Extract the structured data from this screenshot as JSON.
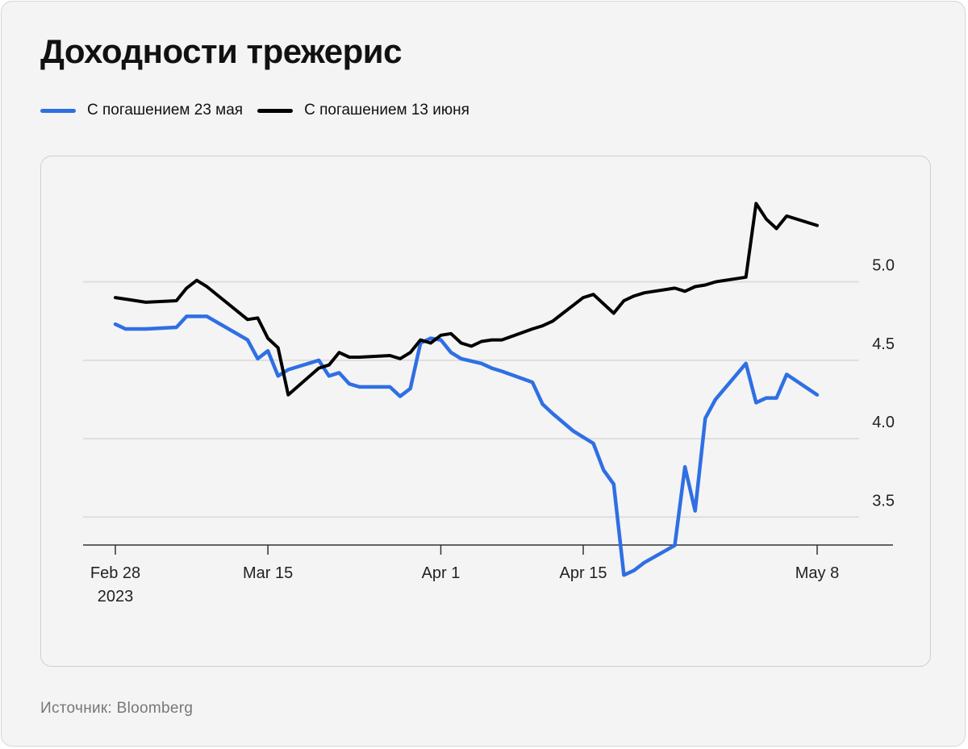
{
  "header": {
    "title": "Доходности трежерис"
  },
  "legend": {
    "items": [
      {
        "label": "С погашением 23 мая",
        "color": "#2f6fe4"
      },
      {
        "label": "С погашением 13 июня",
        "color": "#000000"
      }
    ]
  },
  "footer": {
    "source": "Источник: Bloomberg"
  },
  "chart_data": {
    "type": "line",
    "title": "Доходности трежерис",
    "xlabel": "",
    "ylabel": "",
    "xlim": [
      "2023-02-28",
      "2023-05-08"
    ],
    "ylim": [
      3.25,
      5.25
    ],
    "grid": true,
    "legend_position": "top-left",
    "y_ticks": [
      {
        "value": 5.0,
        "label": "5.0"
      },
      {
        "value": 4.5,
        "label": "4.5"
      },
      {
        "value": 4.0,
        "label": "4.0"
      },
      {
        "value": 3.5,
        "label": "3.5"
      }
    ],
    "x_ticks": [
      {
        "date": "2023-02-28",
        "label": "Feb 28",
        "label2": "2023"
      },
      {
        "date": "2023-03-15",
        "label": "Mar 15",
        "label2": ""
      },
      {
        "date": "2023-04-01",
        "label": "Apr 1",
        "label2": ""
      },
      {
        "date": "2023-04-15",
        "label": "Apr 15",
        "label2": ""
      },
      {
        "date": "2023-05-08",
        "label": "May 8",
        "label2": ""
      }
    ],
    "series": [
      {
        "name": "С погашением 23 мая",
        "color": "#2f6fe4",
        "points": [
          [
            "2023-02-28",
            4.73
          ],
          [
            "2023-03-01",
            4.7
          ],
          [
            "2023-03-02",
            4.7
          ],
          [
            "2023-03-03",
            4.7
          ],
          [
            "2023-03-06",
            4.71
          ],
          [
            "2023-03-07",
            4.78
          ],
          [
            "2023-03-08",
            4.78
          ],
          [
            "2023-03-09",
            4.78
          ],
          [
            "2023-03-13",
            4.63
          ],
          [
            "2023-03-14",
            4.51
          ],
          [
            "2023-03-15",
            4.56
          ],
          [
            "2023-03-16",
            4.4
          ],
          [
            "2023-03-17",
            4.44
          ],
          [
            "2023-03-20",
            4.5
          ],
          [
            "2023-03-21",
            4.4
          ],
          [
            "2023-03-22",
            4.42
          ],
          [
            "2023-03-23",
            4.35
          ],
          [
            "2023-03-24",
            4.33
          ],
          [
            "2023-03-27",
            4.33
          ],
          [
            "2023-03-28",
            4.27
          ],
          [
            "2023-03-29",
            4.32
          ],
          [
            "2023-03-30",
            4.61
          ],
          [
            "2023-03-31",
            4.64
          ],
          [
            "2023-04-01",
            4.63
          ],
          [
            "2023-04-02",
            4.55
          ],
          [
            "2023-04-03",
            4.51
          ],
          [
            "2023-04-05",
            4.48
          ],
          [
            "2023-04-06",
            4.45
          ],
          [
            "2023-04-07",
            4.43
          ],
          [
            "2023-04-10",
            4.36
          ],
          [
            "2023-04-11",
            4.22
          ],
          [
            "2023-04-12",
            4.16
          ],
          [
            "2023-04-14",
            4.05
          ],
          [
            "2023-04-16",
            3.97
          ],
          [
            "2023-04-17",
            3.8
          ],
          [
            "2023-04-18",
            3.71
          ],
          [
            "2023-04-19",
            3.13
          ],
          [
            "2023-04-20",
            3.16
          ],
          [
            "2023-04-21",
            3.21
          ],
          [
            "2023-04-24",
            3.32
          ],
          [
            "2023-04-25",
            3.82
          ],
          [
            "2023-04-26",
            3.54
          ],
          [
            "2023-04-27",
            4.13
          ],
          [
            "2023-04-28",
            4.25
          ],
          [
            "2023-05-01",
            4.48
          ],
          [
            "2023-05-02",
            4.23
          ],
          [
            "2023-05-03",
            4.26
          ],
          [
            "2023-05-04",
            4.26
          ],
          [
            "2023-05-05",
            4.41
          ],
          [
            "2023-05-08",
            4.28
          ]
        ]
      },
      {
        "name": "С погашением 13 июня",
        "color": "#000000",
        "points": [
          [
            "2023-02-28",
            4.9
          ],
          [
            "2023-03-01",
            4.89
          ],
          [
            "2023-03-03",
            4.87
          ],
          [
            "2023-03-06",
            4.88
          ],
          [
            "2023-03-07",
            4.96
          ],
          [
            "2023-03-08",
            5.01
          ],
          [
            "2023-03-09",
            4.97
          ],
          [
            "2023-03-13",
            4.76
          ],
          [
            "2023-03-14",
            4.77
          ],
          [
            "2023-03-15",
            4.64
          ],
          [
            "2023-03-16",
            4.58
          ],
          [
            "2023-03-17",
            4.28
          ],
          [
            "2023-03-20",
            4.45
          ],
          [
            "2023-03-21",
            4.47
          ],
          [
            "2023-03-22",
            4.55
          ],
          [
            "2023-03-23",
            4.52
          ],
          [
            "2023-03-24",
            4.52
          ],
          [
            "2023-03-27",
            4.53
          ],
          [
            "2023-03-28",
            4.51
          ],
          [
            "2023-03-29",
            4.55
          ],
          [
            "2023-03-30",
            4.63
          ],
          [
            "2023-03-31",
            4.61
          ],
          [
            "2023-04-01",
            4.66
          ],
          [
            "2023-04-02",
            4.67
          ],
          [
            "2023-04-03",
            4.61
          ],
          [
            "2023-04-04",
            4.59
          ],
          [
            "2023-04-05",
            4.62
          ],
          [
            "2023-04-06",
            4.63
          ],
          [
            "2023-04-07",
            4.63
          ],
          [
            "2023-04-10",
            4.7
          ],
          [
            "2023-04-11",
            4.72
          ],
          [
            "2023-04-12",
            4.75
          ],
          [
            "2023-04-13",
            4.8
          ],
          [
            "2023-04-14",
            4.85
          ],
          [
            "2023-04-15",
            4.9
          ],
          [
            "2023-04-16",
            4.92
          ],
          [
            "2023-04-18",
            4.8
          ],
          [
            "2023-04-19",
            4.88
          ],
          [
            "2023-04-20",
            4.91
          ],
          [
            "2023-04-21",
            4.93
          ],
          [
            "2023-04-24",
            4.96
          ],
          [
            "2023-04-25",
            4.94
          ],
          [
            "2023-04-26",
            4.97
          ],
          [
            "2023-04-27",
            4.98
          ],
          [
            "2023-04-28",
            5.0
          ],
          [
            "2023-05-01",
            5.03
          ],
          [
            "2023-05-02",
            5.5
          ],
          [
            "2023-05-03",
            5.4
          ],
          [
            "2023-05-04",
            5.34
          ],
          [
            "2023-05-05",
            5.42
          ],
          [
            "2023-05-08",
            5.36
          ]
        ]
      }
    ]
  }
}
